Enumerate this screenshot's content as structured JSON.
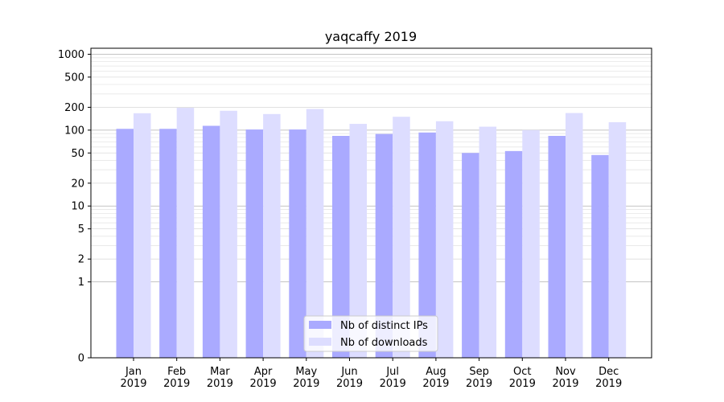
{
  "chart_data": {
    "type": "bar",
    "title": "yaqcaffy 2019",
    "xlabel": "",
    "ylabel": "",
    "y_scale": "symlog",
    "ylim": [
      0,
      1200
    ],
    "y_ticks": [
      0,
      1,
      2,
      5,
      10,
      20,
      50,
      100,
      200,
      500,
      1000
    ],
    "grid": true,
    "legend_position": "bottom-center",
    "categories": [
      [
        "Jan",
        "2019"
      ],
      [
        "Feb",
        "2019"
      ],
      [
        "Mar",
        "2019"
      ],
      [
        "Apr",
        "2019"
      ],
      [
        "May",
        "2019"
      ],
      [
        "Jun",
        "2019"
      ],
      [
        "Jul",
        "2019"
      ],
      [
        "Aug",
        "2019"
      ],
      [
        "Sep",
        "2019"
      ],
      [
        "Oct",
        "2019"
      ],
      [
        "Nov",
        "2019"
      ],
      [
        "Dec",
        "2019"
      ]
    ],
    "series": [
      {
        "name": "Nb of distinct IPs",
        "color": "#aaaaff",
        "values": [
          104,
          104,
          114,
          102,
          102,
          84,
          89,
          93,
          50,
          53,
          84,
          47
        ]
      },
      {
        "name": "Nb of downloads",
        "color": "#ddddff",
        "values": [
          167,
          197,
          180,
          163,
          190,
          121,
          150,
          131,
          111,
          100,
          168,
          127
        ]
      }
    ]
  }
}
